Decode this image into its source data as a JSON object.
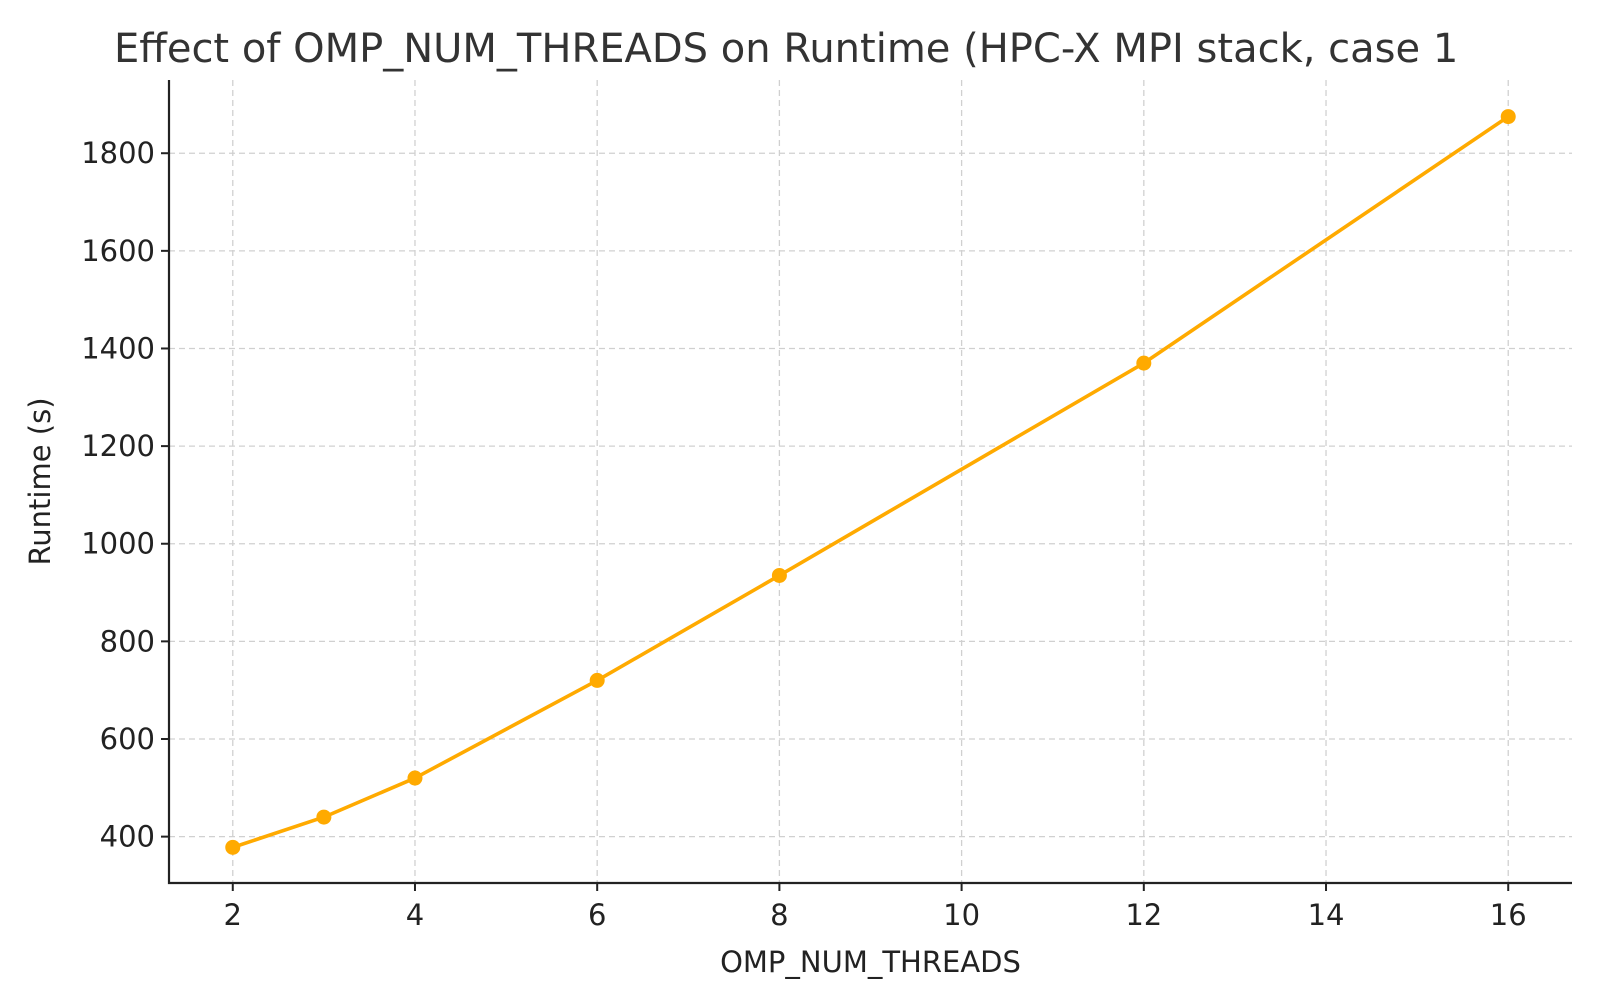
{
  "chart_data": {
    "type": "line",
    "title": "Effect of OMP_NUM_THREADS on Runtime (HPC-X MPI stack, case 1",
    "xlabel": "OMP_NUM_THREADS",
    "ylabel": "Runtime (s)",
    "x": [
      2,
      3,
      4,
      6,
      8,
      12,
      16
    ],
    "series": [
      {
        "values": [
          378,
          440,
          520,
          720,
          935,
          1370,
          1875
        ]
      }
    ],
    "xlim": [
      1.3,
      16.7
    ],
    "ylim": [
      305,
      1950
    ],
    "xticks": [
      2,
      4,
      6,
      8,
      10,
      12,
      14,
      16
    ],
    "yticks": [
      400,
      600,
      800,
      1000,
      1200,
      1400,
      1600,
      1800
    ],
    "grid": true,
    "line_color": "#FFAA00",
    "marker": "circle"
  }
}
